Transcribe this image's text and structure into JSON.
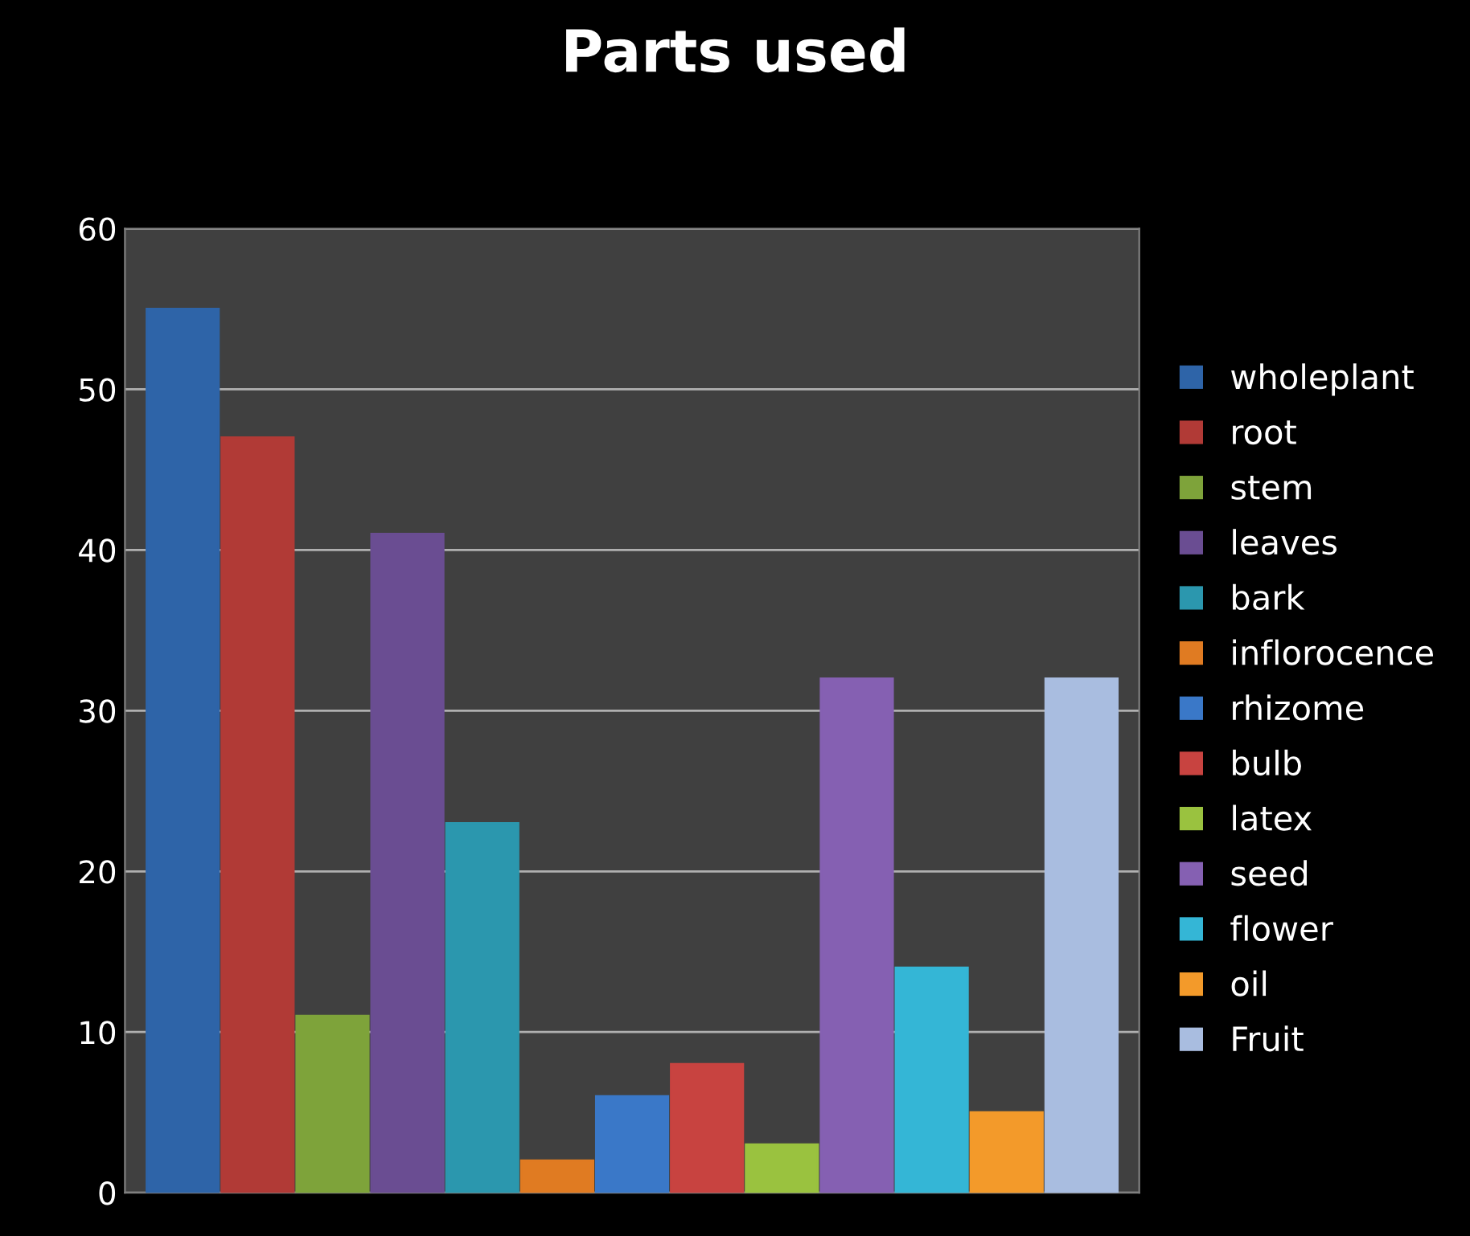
{
  "chart_data": {
    "type": "bar",
    "title": "Parts used",
    "categories": [
      null
    ],
    "series": [
      {
        "name": "wholeplant",
        "color": "#2e64a8",
        "values": [
          55
        ]
      },
      {
        "name": "root",
        "color": "#b13a36",
        "values": [
          47
        ]
      },
      {
        "name": "stem",
        "color": "#7ea33a",
        "values": [
          11
        ]
      },
      {
        "name": "leaves",
        "color": "#6a4d92",
        "values": [
          41
        ]
      },
      {
        "name": "bark",
        "color": "#2b97ae",
        "values": [
          23
        ]
      },
      {
        "name": "inflorocence",
        "color": "#e07b22",
        "values": [
          2
        ]
      },
      {
        "name": "rhizome",
        "color": "#3a78c8",
        "values": [
          6
        ]
      },
      {
        "name": "bulb",
        "color": "#c84340",
        "values": [
          8
        ]
      },
      {
        "name": "latex",
        "color": "#9ac23f",
        "values": [
          3
        ]
      },
      {
        "name": "seed",
        "color": "#8560b2",
        "values": [
          32
        ]
      },
      {
        "name": "flower",
        "color": "#34b6d6",
        "values": [
          14
        ]
      },
      {
        "name": "oil",
        "color": "#f39a2a",
        "values": [
          5
        ]
      },
      {
        "name": "Fruit",
        "color": "#a9bde0",
        "values": [
          32
        ]
      }
    ],
    "ylim": [
      0,
      60
    ],
    "yticks": [
      0,
      10,
      20,
      30,
      40,
      50,
      60
    ],
    "grid": "y",
    "legend": "right"
  }
}
